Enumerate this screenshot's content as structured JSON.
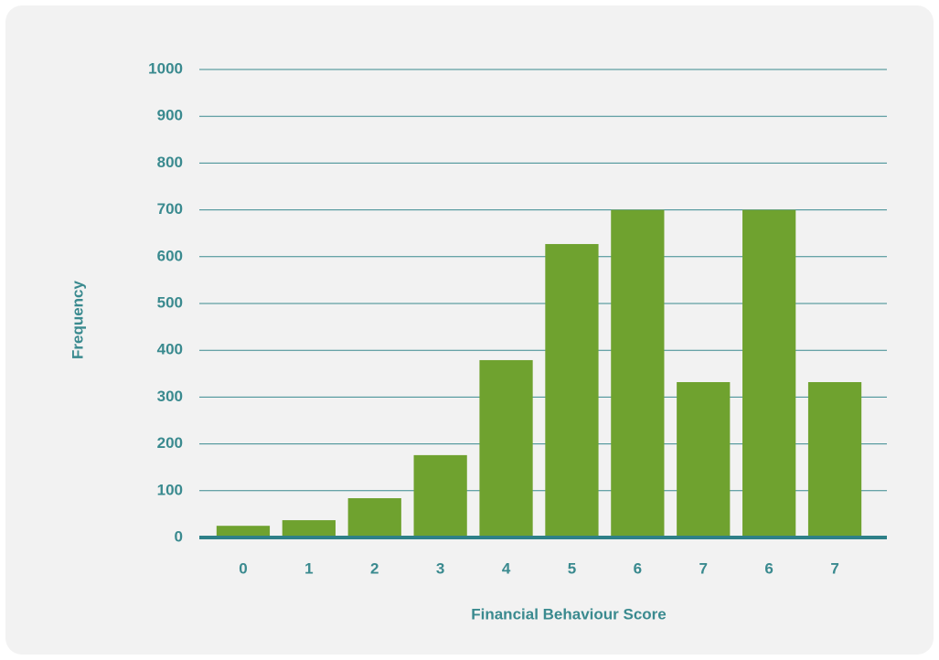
{
  "chart_data": {
    "type": "bar",
    "xlabel": "Financial Behaviour Score",
    "ylabel": "Frequency",
    "categories": [
      "0",
      "1",
      "2",
      "3",
      "4",
      "5",
      "6",
      "7",
      "6",
      "7"
    ],
    "values": [
      25,
      37,
      84,
      176,
      379,
      627,
      700,
      332,
      700,
      332
    ],
    "color": "#6fa22f",
    "ylim": [
      0,
      1000
    ],
    "yticks": [
      0,
      100,
      200,
      300,
      400,
      500,
      600,
      700,
      800,
      900,
      1000
    ],
    "grid": true
  }
}
